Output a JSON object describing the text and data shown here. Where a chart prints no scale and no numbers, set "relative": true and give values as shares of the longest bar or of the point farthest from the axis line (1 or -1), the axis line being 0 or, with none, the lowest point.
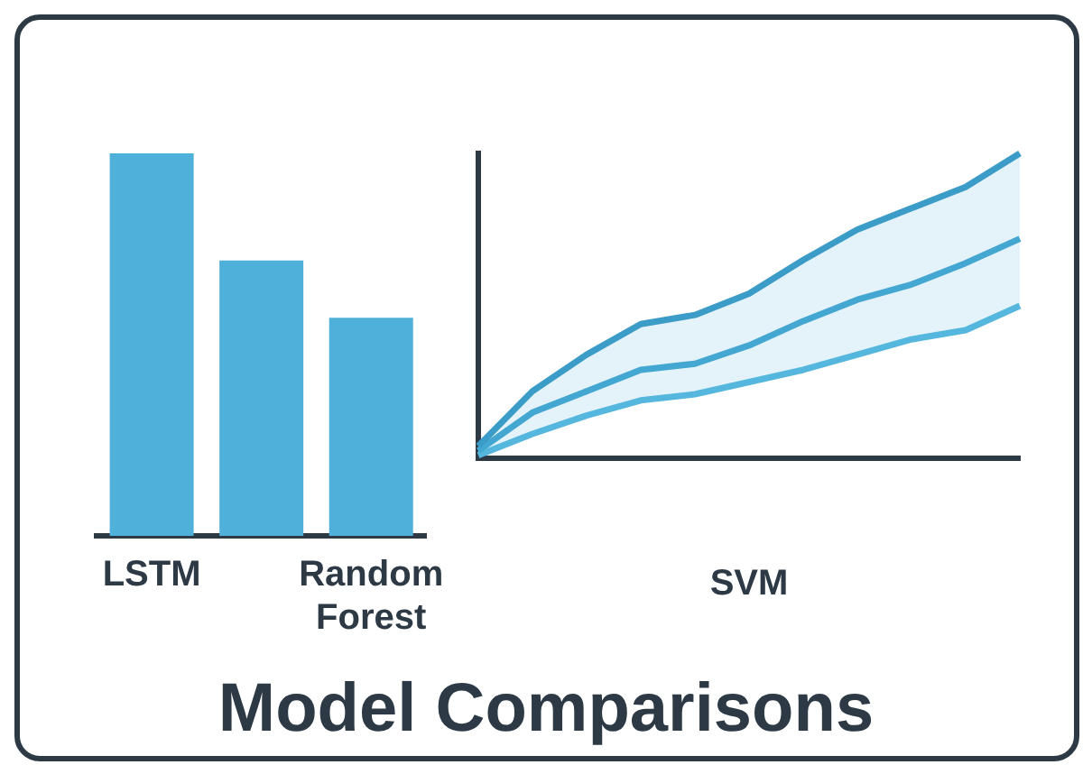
{
  "chart_data": [
    {
      "type": "bar",
      "title": "Model Comparisons",
      "categories": [
        "LSTM",
        null,
        "Random Forest"
      ],
      "values": [
        1,
        0.72,
        0.57
      ],
      "color": "#4fb1d9",
      "relative": true,
      "grid": false,
      "legend": false
    },
    {
      "type": "line",
      "xlabel": "SVM",
      "categories": [
        null,
        null,
        null,
        null,
        null,
        null,
        null,
        null,
        null,
        null,
        null
      ],
      "relative": true,
      "grid": false,
      "legend": false,
      "marker": "none",
      "line_style": "solid",
      "series": [
        {
          "color": "#3b9cc8",
          "values": [
            0.04,
            0.22,
            0.34,
            0.44,
            0.47,
            0.54,
            0.65,
            0.75,
            0.82,
            0.89,
            1
          ]
        },
        {
          "color": "#43a7d2",
          "values": [
            0.025,
            0.15,
            0.22,
            0.29,
            0.31,
            0.37,
            0.45,
            0.52,
            0.57,
            0.64,
            0.72
          ],
          "lower": [
            0.01,
            0.08,
            0.14,
            0.19,
            0.21,
            0.25,
            0.29,
            0.34,
            0.39,
            0.42,
            0.5
          ],
          "upper": [
            0.04,
            0.22,
            0.34,
            0.44,
            0.47,
            0.54,
            0.65,
            0.75,
            0.82,
            0.89,
            1
          ]
        },
        {
          "color": "#55b6de",
          "values": [
            0.01,
            0.08,
            0.14,
            0.19,
            0.21,
            0.25,
            0.29,
            0.34,
            0.39,
            0.42,
            0.5
          ]
        }
      ]
    }
  ]
}
